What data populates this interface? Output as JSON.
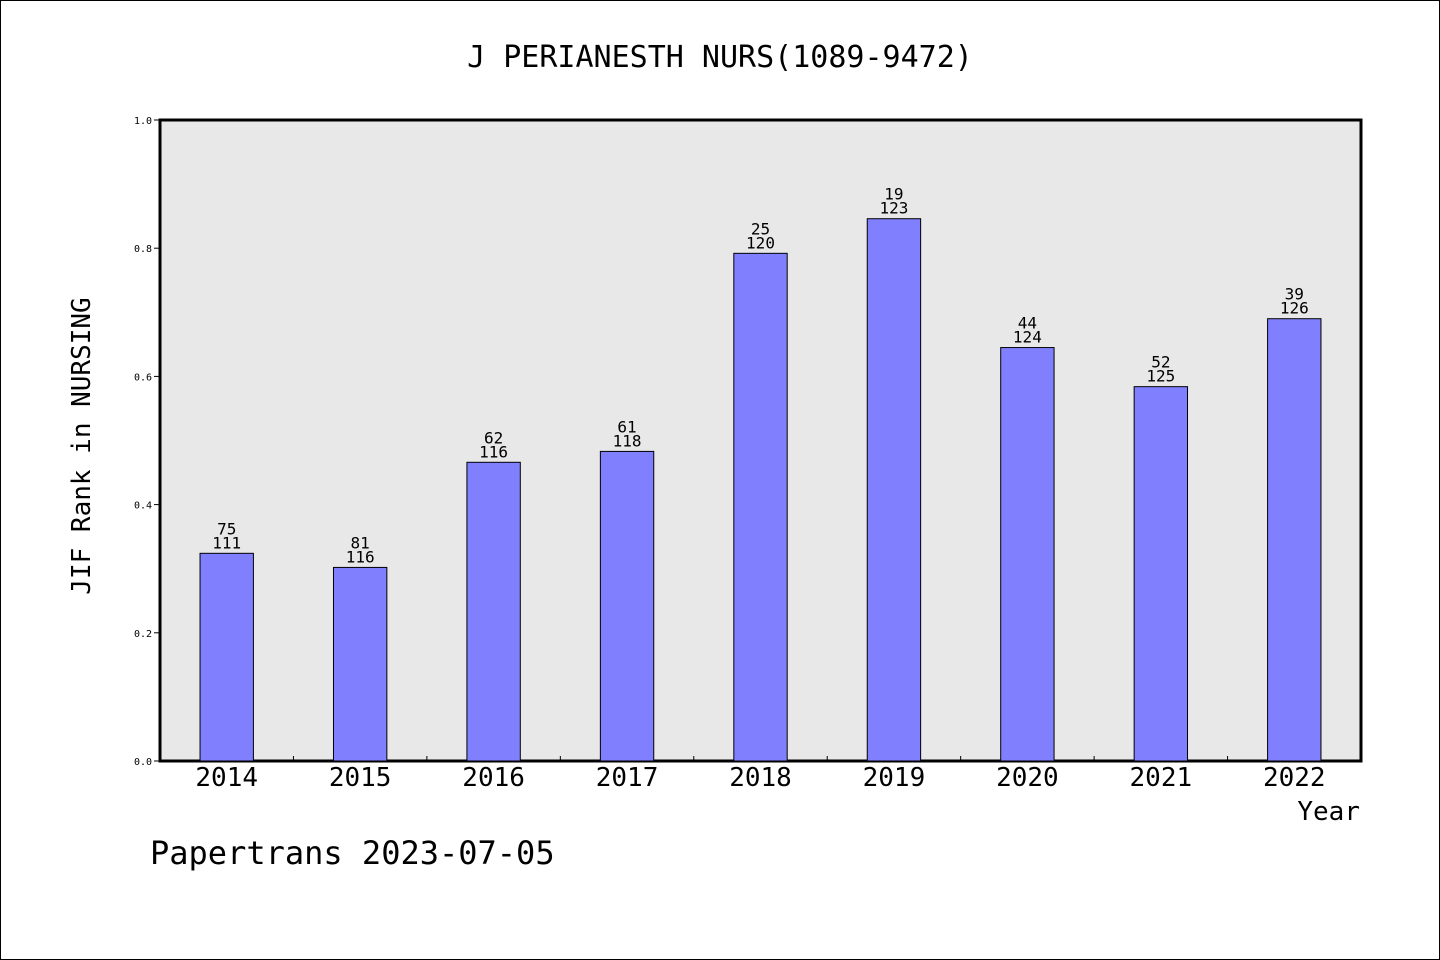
{
  "chart_data": {
    "type": "bar",
    "title": "J PERIANESTH NURS(1089-9472)",
    "xlabel": "Year",
    "ylabel": "JIF Rank in NURSING",
    "ylim": [
      0,
      1.0
    ],
    "yticks": [
      "0.0",
      "0.2",
      "0.4",
      "0.6",
      "0.8",
      "1.0"
    ],
    "categories": [
      "2014",
      "2015",
      "2016",
      "2017",
      "2018",
      "2019",
      "2020",
      "2021",
      "2022"
    ],
    "values": [
      0.324,
      0.302,
      0.466,
      0.483,
      0.792,
      0.846,
      0.645,
      0.584,
      0.69
    ],
    "ranks": [
      "75",
      "81",
      "62",
      "61",
      "25",
      "19",
      "44",
      "52",
      "39"
    ],
    "totals": [
      "111",
      "116",
      "116",
      "118",
      "120",
      "123",
      "124",
      "125",
      "126"
    ],
    "grid": false,
    "colors": {
      "bar_fill": "#8080ff",
      "plot_background": "#e8e8e8"
    }
  },
  "footer": "Papertrans 2023-07-05"
}
